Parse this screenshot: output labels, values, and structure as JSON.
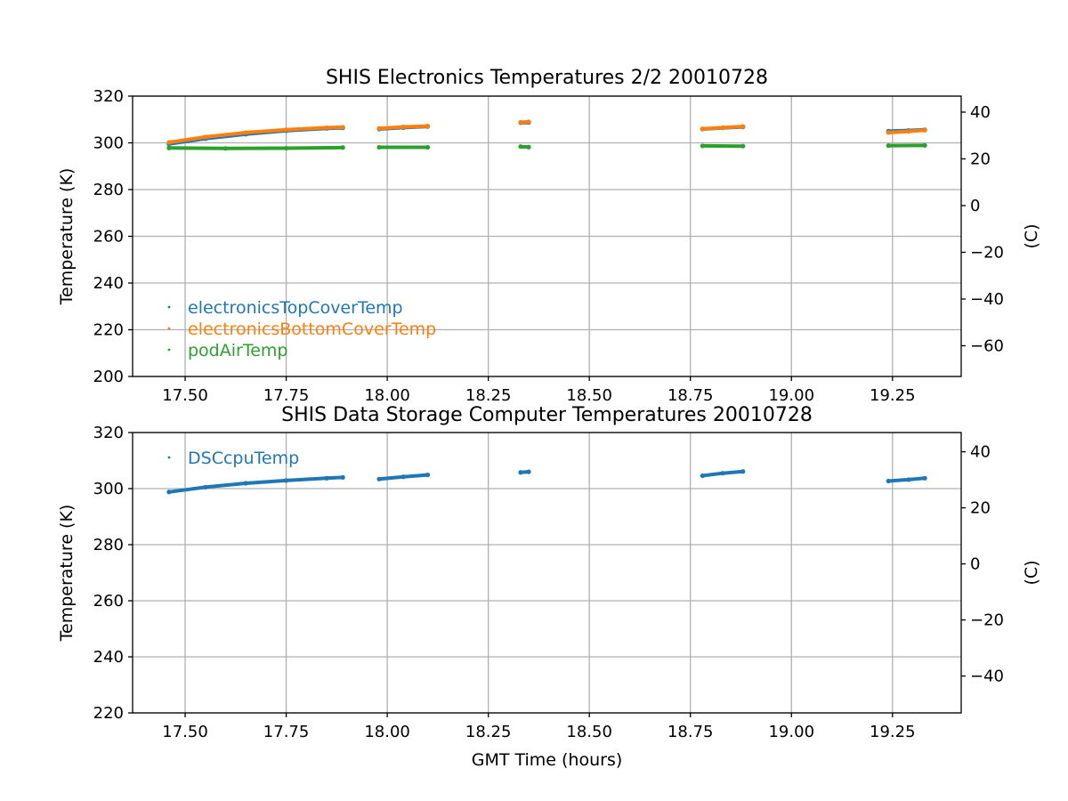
{
  "chart_data": [
    {
      "type": "scatter",
      "title": "SHIS Electronics Temperatures 2/2 20010728",
      "xlabel": "",
      "ylabel": "Temperature (K)",
      "ylabel_right": "(C)",
      "xlim": [
        17.37,
        19.42
      ],
      "ylim": [
        200,
        320
      ],
      "y2lim": [
        -73.15,
        46.85
      ],
      "xticks": [
        "17.50",
        "17.75",
        "18.00",
        "18.25",
        "18.50",
        "18.75",
        "19.00",
        "19.25"
      ],
      "yticks": [
        "200",
        "220",
        "240",
        "260",
        "280",
        "300",
        "320"
      ],
      "y2ticks": [
        "−60",
        "−40",
        "−20",
        "0",
        "20",
        "40"
      ],
      "grid": true,
      "legend_position": "lower-left",
      "series": [
        {
          "name": "electronicsTopCoverTemp",
          "color": "#1f77b4",
          "segments": [
            {
              "x": [
                17.46,
                17.55,
                17.65,
                17.75,
                17.85,
                17.89
              ],
              "y": [
                299.5,
                301.8,
                303.7,
                305.2,
                306.2,
                306.4
              ]
            },
            {
              "x": [
                17.98,
                18.04,
                18.1
              ],
              "y": [
                305.9,
                306.5,
                307.0
              ]
            },
            {
              "x": [
                18.33,
                18.35
              ],
              "y": [
                308.6,
                308.7
              ]
            },
            {
              "x": [
                18.78,
                18.83,
                18.88
              ],
              "y": [
                305.9,
                306.4,
                306.8
              ]
            },
            {
              "x": [
                19.24,
                19.29,
                19.33
              ],
              "y": [
                305.0,
                305.3,
                305.6
              ]
            }
          ]
        },
        {
          "name": "electronicsBottomCoverTemp",
          "color": "#ff7f0e",
          "segments": [
            {
              "x": [
                17.46,
                17.55,
                17.65,
                17.75,
                17.85,
                17.89
              ],
              "y": [
                300.2,
                302.5,
                304.4,
                305.6,
                306.5,
                306.7
              ]
            },
            {
              "x": [
                17.98,
                18.04,
                18.1
              ],
              "y": [
                306.2,
                306.8,
                307.2
              ]
            },
            {
              "x": [
                18.33,
                18.35
              ],
              "y": [
                308.8,
                309.0
              ]
            },
            {
              "x": [
                18.78,
                18.83,
                18.88
              ],
              "y": [
                306.0,
                306.5,
                307.0
              ]
            },
            {
              "x": [
                19.24,
                19.29,
                19.33
              ],
              "y": [
                304.4,
                304.9,
                305.4
              ]
            }
          ]
        },
        {
          "name": "podAirTemp",
          "color": "#2ca02c",
          "segments": [
            {
              "x": [
                17.46,
                17.6,
                17.75,
                17.89
              ],
              "y": [
                297.8,
                297.6,
                297.7,
                298.0
              ]
            },
            {
              "x": [
                17.98,
                18.1
              ],
              "y": [
                298.1,
                298.1
              ]
            },
            {
              "x": [
                18.33,
                18.35
              ],
              "y": [
                298.4,
                298.2
              ]
            },
            {
              "x": [
                18.78,
                18.88
              ],
              "y": [
                298.7,
                298.6
              ]
            },
            {
              "x": [
                19.24,
                19.33
              ],
              "y": [
                298.8,
                298.9
              ]
            }
          ]
        }
      ]
    },
    {
      "type": "scatter",
      "title": "SHIS Data Storage Computer Temperatures 20010728",
      "xlabel": "GMT Time (hours)",
      "ylabel": "Temperature (K)",
      "ylabel_right": "(C)",
      "xlim": [
        17.37,
        19.42
      ],
      "ylim": [
        220,
        320
      ],
      "y2lim": [
        -53.15,
        46.85
      ],
      "xticks": [
        "17.50",
        "17.75",
        "18.00",
        "18.25",
        "18.50",
        "18.75",
        "19.00",
        "19.25"
      ],
      "yticks": [
        "220",
        "240",
        "260",
        "280",
        "300",
        "320"
      ],
      "y2ticks": [
        "−40",
        "−20",
        "0",
        "20",
        "40"
      ],
      "grid": true,
      "legend_position": "upper-left",
      "series": [
        {
          "name": "DSCcpuTemp",
          "color": "#1f77b4",
          "segments": [
            {
              "x": [
                17.46,
                17.55,
                17.65,
                17.75,
                17.85,
                17.89
              ],
              "y": [
                298.8,
                300.5,
                301.9,
                302.9,
                303.7,
                304.0
              ]
            },
            {
              "x": [
                17.98,
                18.04,
                18.1
              ],
              "y": [
                303.4,
                304.2,
                304.9
              ]
            },
            {
              "x": [
                18.33,
                18.35
              ],
              "y": [
                305.8,
                306.0
              ]
            },
            {
              "x": [
                18.78,
                18.83,
                18.88
              ],
              "y": [
                304.6,
                305.5,
                306.1
              ]
            },
            {
              "x": [
                19.24,
                19.29,
                19.33
              ],
              "y": [
                302.7,
                303.2,
                303.7
              ]
            }
          ]
        }
      ]
    }
  ]
}
